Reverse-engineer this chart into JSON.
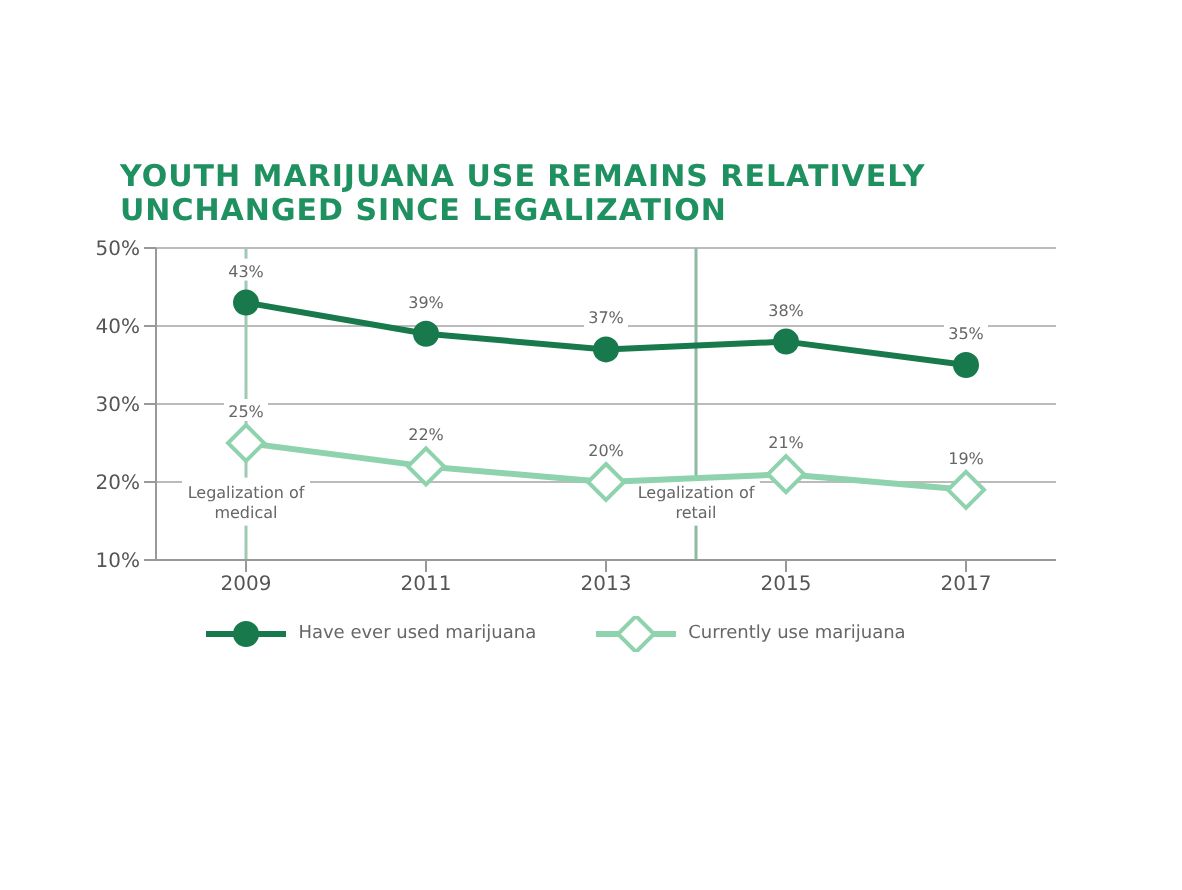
{
  "chart_data": {
    "type": "line",
    "title": "YOUTH MARIJUANA USE REMAINS RELATIVELY UNCHANGED SINCE LEGALIZATION",
    "x": [
      2009,
      2011,
      2013,
      2015,
      2017
    ],
    "xlim": [
      2008,
      2018
    ],
    "xticks": [
      2009,
      2011,
      2013,
      2015,
      2017
    ],
    "ylim": [
      10,
      50
    ],
    "yticks": [
      {
        "value": 10,
        "label": "10%"
      },
      {
        "value": 20,
        "label": "20%"
      },
      {
        "value": 30,
        "label": "30%"
      },
      {
        "value": 40,
        "label": "40%"
      },
      {
        "value": 50,
        "label": "50%"
      }
    ],
    "series": [
      {
        "name": "Have ever used marijuana",
        "color": "#187a4c",
        "marker": "circle",
        "values": [
          43,
          39,
          37,
          38,
          35
        ],
        "value_labels": [
          "43%",
          "39%",
          "37%",
          "38%",
          "35%"
        ]
      },
      {
        "name": "Currently use marijuana",
        "color": "#8fd2ae",
        "marker": "diamond",
        "values": [
          25,
          22,
          20,
          21,
          19
        ],
        "value_labels": [
          "25%",
          "22%",
          "20%",
          "21%",
          "19%"
        ]
      }
    ],
    "ref_lines": [
      {
        "axis": "x",
        "value": 2009,
        "label": "Legalization of medical",
        "color": "#9fc9b2"
      },
      {
        "axis": "x",
        "value": 2014,
        "label": "Legalization of retail",
        "color": "#8fb9a2"
      }
    ],
    "grid": "y",
    "legend": "bottom"
  }
}
